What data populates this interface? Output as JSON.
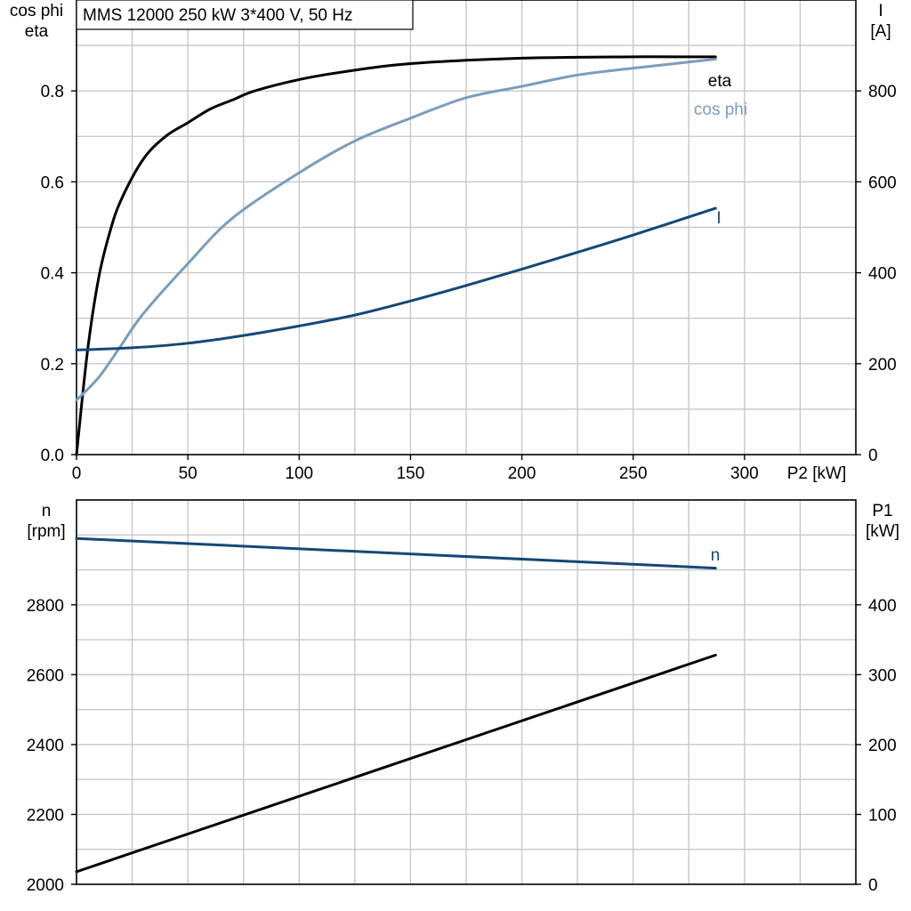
{
  "title": "MMS 12000   250 kW   3*400 V, 50 Hz",
  "colors": {
    "eta": "#000000",
    "cos_phi": "#7a9dbb",
    "I": "#144876",
    "n": "#144876",
    "P1": "#000000"
  },
  "chart_data": [
    {
      "type": "line",
      "title": "MMS 12000   250 kW   3*400 V, 50 Hz",
      "xlabel": "P2 [kW]",
      "ylabel_left": [
        "cos phi",
        "eta"
      ],
      "ylabel_right": [
        "I",
        "[A]"
      ],
      "xlim": [
        0,
        350
      ],
      "ylim_left": [
        0,
        1.0
      ],
      "ylim_right": [
        0,
        1000
      ],
      "x_ticks": [
        "0",
        "50",
        "100",
        "150",
        "200",
        "250",
        "300"
      ],
      "y_left_ticks": [
        "0.0",
        "0.2",
        "0.4",
        "0.6",
        "0.8"
      ],
      "y_right_ticks": [
        "0",
        "200",
        "400",
        "600",
        "800"
      ],
      "grid": true,
      "series": [
        {
          "name": "eta",
          "axis": "left",
          "x": [
            0,
            5,
            10,
            15,
            20,
            30,
            40,
            50,
            60,
            70,
            80,
            100,
            120,
            150,
            200,
            250,
            287
          ],
          "y": [
            0.0,
            0.23,
            0.39,
            0.49,
            0.56,
            0.65,
            0.7,
            0.73,
            0.76,
            0.78,
            0.8,
            0.825,
            0.842,
            0.86,
            0.872,
            0.875,
            0.875
          ]
        },
        {
          "name": "cos phi",
          "axis": "left",
          "x": [
            0,
            10,
            20,
            30,
            50,
            70,
            100,
            125,
            150,
            175,
            200,
            225,
            250,
            287
          ],
          "y": [
            0.12,
            0.17,
            0.24,
            0.31,
            0.42,
            0.52,
            0.62,
            0.69,
            0.74,
            0.785,
            0.81,
            0.835,
            0.85,
            0.87
          ]
        },
        {
          "name": "I",
          "axis": "right",
          "x": [
            0,
            25,
            50,
            75,
            100,
            125,
            150,
            175,
            200,
            225,
            250,
            287
          ],
          "y": [
            230,
            235,
            245,
            262,
            283,
            307,
            338,
            372,
            408,
            445,
            483,
            542
          ]
        }
      ]
    },
    {
      "type": "line",
      "ylabel_left": [
        "n",
        "[rpm]"
      ],
      "ylabel_right": [
        "P1",
        "[kW]"
      ],
      "xlim": [
        0,
        350
      ],
      "ylim_left": [
        2000,
        3100
      ],
      "ylim_right": [
        0,
        550
      ],
      "y_left_ticks": [
        "2000",
        "2200",
        "2400",
        "2600",
        "2800"
      ],
      "y_right_ticks": [
        "0",
        "100",
        "200",
        "300",
        "400"
      ],
      "grid": true,
      "series": [
        {
          "name": "n",
          "axis": "left",
          "x": [
            0,
            287
          ],
          "y": [
            2990,
            2905
          ]
        },
        {
          "axis": "right",
          "x": [
            0,
            287
          ],
          "y": [
            18,
            328
          ]
        }
      ]
    }
  ]
}
